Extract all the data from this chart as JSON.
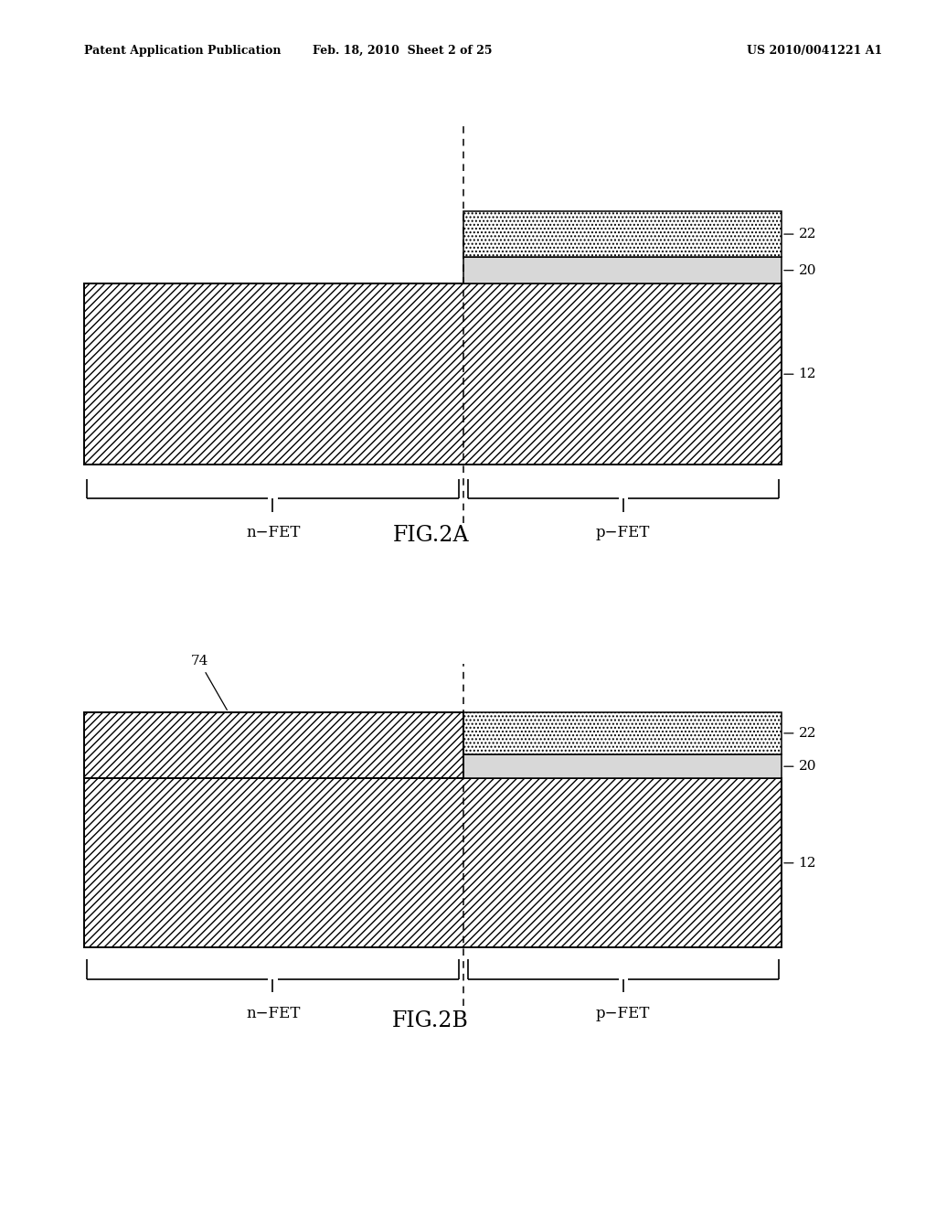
{
  "bg_color": "#ffffff",
  "header_left": "Patent Application Publication",
  "header_mid": "Feb. 18, 2010  Sheet 2 of 25",
  "header_right": "US 2010/0041221 A1",
  "fig2a_title": "FIG.2A",
  "fig2b_title": "FIG.2B",
  "label_12": "12",
  "label_20": "20",
  "label_22": "22",
  "label_74": "74",
  "label_nfet": "n−FET",
  "label_pfet": "p−FET",
  "hatch_substrate": "////",
  "hatch_layer74": "////",
  "hatch_layer22": "....",
  "fc_substrate": "#ffffff",
  "fc_layer20": "#d8d8d8",
  "fc_layer22": "#ffffff",
  "fc_layer74": "#ffffff"
}
